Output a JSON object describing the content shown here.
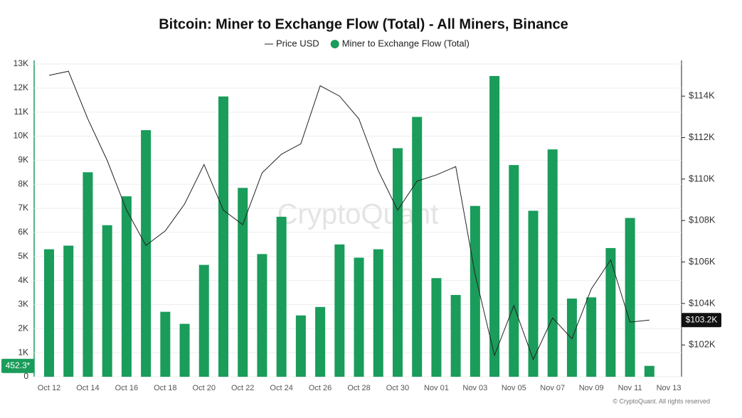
{
  "chart_data": {
    "type": "bar",
    "title": "Bitcoin: Miner to Exchange Flow (Total) - All Miners, Binance",
    "watermark": "CryptoQuant",
    "footer": "© CryptoQuant. All rights reserved",
    "categories": [
      "Oct 12",
      null,
      "Oct 14",
      null,
      "Oct 16",
      null,
      "Oct 18",
      null,
      "Oct 20",
      null,
      "Oct 22",
      null,
      "Oct 24",
      null,
      "Oct 26",
      null,
      "Oct 28",
      null,
      "Oct 30",
      null,
      "Nov 01",
      null,
      "Nov 03",
      null,
      "Nov 05",
      null,
      "Nov 07",
      null,
      "Nov 09",
      null,
      "Nov 11",
      null,
      "Nov 13"
    ],
    "series": [
      {
        "name": "Miner to Exchange Flow (Total)",
        "type": "bar",
        "color": "#1a9c5b",
        "values": [
          5300,
          5450,
          8500,
          6300,
          7500,
          10250,
          2700,
          2200,
          4650,
          11650,
          7850,
          5100,
          6650,
          2550,
          2900,
          5500,
          4950,
          5300,
          9500,
          10800,
          4100,
          3400,
          7100,
          12500,
          8800,
          6900,
          9450,
          3250,
          3300,
          5350,
          6600,
          452.3,
          null
        ],
        "value_labels": [
          null,
          null,
          null,
          null,
          null,
          null,
          null,
          null,
          null,
          null,
          null,
          null,
          null,
          null,
          null,
          null,
          null,
          null,
          null,
          null,
          null,
          null,
          null,
          null,
          null,
          null,
          null,
          null,
          null,
          null,
          null,
          "452.3*",
          null
        ]
      },
      {
        "name": "Price USD",
        "type": "line",
        "axis": "y2",
        "color": "#222222",
        "values": [
          115000,
          115200,
          112900,
          110900,
          108500,
          106800,
          107500,
          108800,
          110700,
          108500,
          107800,
          110300,
          111200,
          111700,
          114500,
          114000,
          112900,
          110400,
          108500,
          109900,
          110200,
          110600,
          105400,
          101500,
          103900,
          101300,
          103300,
          102300,
          104700,
          106100,
          103100,
          103200,
          null
        ],
        "value_labels": [
          null,
          null,
          null,
          null,
          null,
          null,
          null,
          null,
          null,
          null,
          null,
          null,
          null,
          null,
          null,
          null,
          null,
          null,
          null,
          null,
          null,
          null,
          null,
          null,
          null,
          null,
          null,
          null,
          null,
          null,
          null,
          "$103.2K",
          null
        ]
      }
    ],
    "ylim": [
      0,
      13000
    ],
    "yticks": [
      0,
      {
        "value": 1000,
        "label": "1K"
      },
      {
        "value": 2000,
        "label": "2K"
      },
      {
        "value": 3000,
        "label": "3K"
      },
      {
        "value": 4000,
        "label": "4K"
      },
      {
        "value": 5000,
        "label": "5K"
      },
      {
        "value": 6000,
        "label": "6K"
      },
      {
        "value": 7000,
        "label": "7K"
      },
      {
        "value": 8000,
        "label": "8K"
      },
      {
        "value": 9000,
        "label": "9K"
      },
      {
        "value": 10000,
        "label": "10K"
      },
      {
        "value": 11000,
        "label": "11K"
      },
      {
        "value": 12000,
        "label": "12K"
      },
      {
        "value": 13000,
        "label": "13K"
      }
    ],
    "y2lim": [
      100465,
      115550
    ],
    "y2ticks": [
      {
        "value": 102000,
        "label": "$102K"
      },
      {
        "value": 104000,
        "label": "$104K"
      },
      {
        "value": 106000,
        "label": "$106K"
      },
      {
        "value": 108000,
        "label": "$108K"
      },
      {
        "value": 110000,
        "label": "$110K"
      },
      {
        "value": 112000,
        "label": "$112K"
      },
      {
        "value": 114000,
        "label": "$114K"
      }
    ],
    "grid": true
  }
}
